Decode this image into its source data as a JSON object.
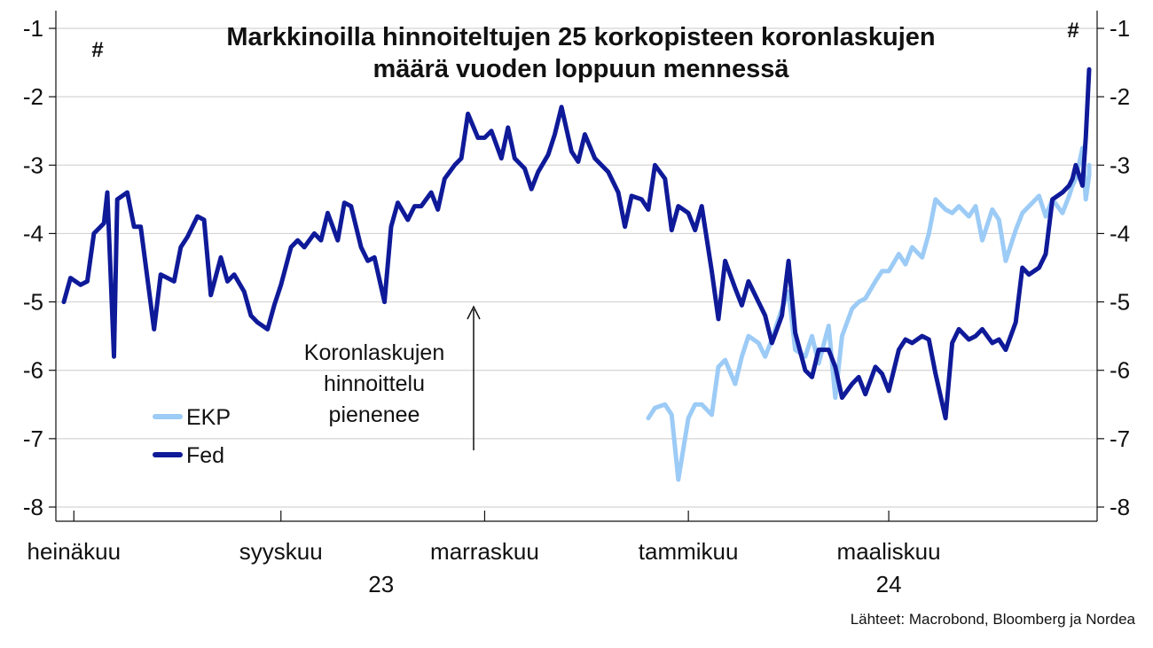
{
  "title_line1": "Markkinoilla hinnoiteltujen 25 korkopisteen koronlaskujen",
  "title_line2": "määrä vuoden loppuun mennessä",
  "unit_left": "#",
  "unit_right": "#",
  "source": "Lähteet: Macrobond, Bloomberg ja Nordea",
  "annotation_lines": [
    "Koronlaskujen",
    "hinnoittelu",
    "pienenee"
  ],
  "chart_data": {
    "type": "line",
    "ylim": [
      -8.25,
      -0.75
    ],
    "yticks": [
      -1,
      -2,
      -3,
      -4,
      -5,
      -6,
      -7,
      -8
    ],
    "ytick_labels": [
      "-1",
      "-2",
      "-3",
      "-4",
      "-5",
      "-6",
      "-7",
      "-8"
    ],
    "x_range": [
      "2023-06-28",
      "2024-04-30"
    ],
    "x_tick_positions": [
      "2023-07-01",
      "2023-09-01",
      "2023-11-01",
      "2024-01-01",
      "2024-03-01"
    ],
    "month_labels": [
      "heinäkuu",
      "syyskuu",
      "marraskuu",
      "tammikuu",
      "maaliskuu"
    ],
    "year_labels": [
      {
        "text": "23",
        "date": "2023-10-01"
      },
      {
        "text": "24",
        "date": "2024-03-01"
      }
    ],
    "grid": true,
    "legend_position": "bottom-left",
    "series": [
      {
        "name": "EKP",
        "color": "#9ccbf6",
        "points": [
          [
            "2023-12-20",
            -6.7
          ],
          [
            "2023-12-22",
            -6.55
          ],
          [
            "2023-12-25",
            -6.5
          ],
          [
            "2023-12-27",
            -6.65
          ],
          [
            "2023-12-29",
            -7.6
          ],
          [
            "2024-01-01",
            -6.7
          ],
          [
            "2024-01-03",
            -6.5
          ],
          [
            "2024-01-05",
            -6.5
          ],
          [
            "2024-01-08",
            -6.65
          ],
          [
            "2024-01-10",
            -5.95
          ],
          [
            "2024-01-12",
            -5.85
          ],
          [
            "2024-01-15",
            -6.2
          ],
          [
            "2024-01-17",
            -5.8
          ],
          [
            "2024-01-19",
            -5.5
          ],
          [
            "2024-01-22",
            -5.6
          ],
          [
            "2024-01-24",
            -5.8
          ],
          [
            "2024-01-26",
            -5.55
          ],
          [
            "2024-01-29",
            -5.1
          ],
          [
            "2024-01-31",
            -4.85
          ],
          [
            "2024-02-02",
            -5.7
          ],
          [
            "2024-02-05",
            -5.8
          ],
          [
            "2024-02-07",
            -5.5
          ],
          [
            "2024-02-09",
            -5.9
          ],
          [
            "2024-02-12",
            -5.35
          ],
          [
            "2024-02-14",
            -6.4
          ],
          [
            "2024-02-16",
            -5.5
          ],
          [
            "2024-02-19",
            -5.1
          ],
          [
            "2024-02-21",
            -5.0
          ],
          [
            "2024-02-23",
            -4.95
          ],
          [
            "2024-02-26",
            -4.7
          ],
          [
            "2024-02-28",
            -4.55
          ],
          [
            "2024-03-01",
            -4.55
          ],
          [
            "2024-03-04",
            -4.3
          ],
          [
            "2024-03-06",
            -4.45
          ],
          [
            "2024-03-08",
            -4.2
          ],
          [
            "2024-03-11",
            -4.35
          ],
          [
            "2024-03-13",
            -4.0
          ],
          [
            "2024-03-15",
            -3.5
          ],
          [
            "2024-03-18",
            -3.65
          ],
          [
            "2024-03-20",
            -3.7
          ],
          [
            "2024-03-22",
            -3.6
          ],
          [
            "2024-03-25",
            -3.75
          ],
          [
            "2024-03-27",
            -3.6
          ],
          [
            "2024-03-29",
            -4.1
          ],
          [
            "2024-04-01",
            -3.65
          ],
          [
            "2024-04-03",
            -3.8
          ],
          [
            "2024-04-05",
            -4.4
          ],
          [
            "2024-04-08",
            -3.95
          ],
          [
            "2024-04-10",
            -3.7
          ],
          [
            "2024-04-12",
            -3.6
          ],
          [
            "2024-04-15",
            -3.45
          ],
          [
            "2024-04-17",
            -3.75
          ],
          [
            "2024-04-19",
            -3.5
          ],
          [
            "2024-04-22",
            -3.7
          ],
          [
            "2024-04-24",
            -3.45
          ],
          [
            "2024-04-25",
            -3.3
          ],
          [
            "2024-04-26",
            -3.2
          ],
          [
            "2024-04-28",
            -2.75
          ],
          [
            "2024-04-29",
            -3.5
          ],
          [
            "2024-04-30",
            -3.15
          ],
          [
            "2024-04-30",
            -3.05
          ],
          [
            "2024-04-30",
            -3.0
          ],
          [
            "2024-04-30",
            -3.15
          ]
        ]
      },
      {
        "name": "Fed",
        "color": "#0f1a99",
        "points": [
          [
            "2023-06-28",
            -5.0
          ],
          [
            "2023-06-30",
            -4.65
          ],
          [
            "2023-07-03",
            -4.75
          ],
          [
            "2023-07-05",
            -4.7
          ],
          [
            "2023-07-07",
            -4.0
          ],
          [
            "2023-07-10",
            -3.85
          ],
          [
            "2023-07-11",
            -3.4
          ],
          [
            "2023-07-13",
            -5.8
          ],
          [
            "2023-07-14",
            -3.5
          ],
          [
            "2023-07-17",
            -3.4
          ],
          [
            "2023-07-19",
            -3.9
          ],
          [
            "2023-07-21",
            -3.9
          ],
          [
            "2023-07-25",
            -5.4
          ],
          [
            "2023-07-27",
            -4.6
          ],
          [
            "2023-07-31",
            -4.7
          ],
          [
            "2023-08-02",
            -4.2
          ],
          [
            "2023-08-04",
            -4.05
          ],
          [
            "2023-08-07",
            -3.75
          ],
          [
            "2023-08-09",
            -3.8
          ],
          [
            "2023-08-11",
            -4.9
          ],
          [
            "2023-08-14",
            -4.35
          ],
          [
            "2023-08-16",
            -4.7
          ],
          [
            "2023-08-18",
            -4.6
          ],
          [
            "2023-08-21",
            -4.85
          ],
          [
            "2023-08-23",
            -5.2
          ],
          [
            "2023-08-25",
            -5.3
          ],
          [
            "2023-08-28",
            -5.4
          ],
          [
            "2023-08-30",
            -5.05
          ],
          [
            "2023-09-01",
            -4.75
          ],
          [
            "2023-09-04",
            -4.2
          ],
          [
            "2023-09-06",
            -4.1
          ],
          [
            "2023-09-08",
            -4.2
          ],
          [
            "2023-09-11",
            -4.0
          ],
          [
            "2023-09-13",
            -4.1
          ],
          [
            "2023-09-15",
            -3.7
          ],
          [
            "2023-09-18",
            -4.1
          ],
          [
            "2023-09-20",
            -3.55
          ],
          [
            "2023-09-22",
            -3.6
          ],
          [
            "2023-09-25",
            -4.2
          ],
          [
            "2023-09-27",
            -4.4
          ],
          [
            "2023-09-29",
            -4.35
          ],
          [
            "2023-10-02",
            -5.0
          ],
          [
            "2023-10-04",
            -3.9
          ],
          [
            "2023-10-06",
            -3.55
          ],
          [
            "2023-10-09",
            -3.8
          ],
          [
            "2023-10-11",
            -3.6
          ],
          [
            "2023-10-13",
            -3.6
          ],
          [
            "2023-10-16",
            -3.4
          ],
          [
            "2023-10-18",
            -3.65
          ],
          [
            "2023-10-20",
            -3.2
          ],
          [
            "2023-10-23",
            -3.0
          ],
          [
            "2023-10-25",
            -2.9
          ],
          [
            "2023-10-27",
            -2.25
          ],
          [
            "2023-10-30",
            -2.6
          ],
          [
            "2023-11-01",
            -2.6
          ],
          [
            "2023-11-03",
            -2.5
          ],
          [
            "2023-11-06",
            -2.9
          ],
          [
            "2023-11-08",
            -2.45
          ],
          [
            "2023-11-10",
            -2.9
          ],
          [
            "2023-11-13",
            -3.05
          ],
          [
            "2023-11-15",
            -3.35
          ],
          [
            "2023-11-17",
            -3.1
          ],
          [
            "2023-11-20",
            -2.85
          ],
          [
            "2023-11-22",
            -2.55
          ],
          [
            "2023-11-24",
            -2.15
          ],
          [
            "2023-11-27",
            -2.8
          ],
          [
            "2023-11-29",
            -2.95
          ],
          [
            "2023-12-01",
            -2.55
          ],
          [
            "2023-12-04",
            -2.9
          ],
          [
            "2023-12-06",
            -3.0
          ],
          [
            "2023-12-08",
            -3.1
          ],
          [
            "2023-12-11",
            -3.4
          ],
          [
            "2023-12-13",
            -3.9
          ],
          [
            "2023-12-15",
            -3.45
          ],
          [
            "2023-12-18",
            -3.5
          ],
          [
            "2023-12-20",
            -3.65
          ],
          [
            "2023-12-22",
            -3.0
          ],
          [
            "2023-12-25",
            -3.2
          ],
          [
            "2023-12-27",
            -3.95
          ],
          [
            "2023-12-29",
            -3.6
          ],
          [
            "2024-01-01",
            -3.7
          ],
          [
            "2024-01-03",
            -3.95
          ],
          [
            "2024-01-05",
            -3.6
          ],
          [
            "2024-01-08",
            -4.55
          ],
          [
            "2024-01-10",
            -5.25
          ],
          [
            "2024-01-12",
            -4.4
          ],
          [
            "2024-01-15",
            -4.8
          ],
          [
            "2024-01-17",
            -5.05
          ],
          [
            "2024-01-19",
            -4.7
          ],
          [
            "2024-01-22",
            -5.0
          ],
          [
            "2024-01-24",
            -5.2
          ],
          [
            "2024-01-26",
            -5.6
          ],
          [
            "2024-01-29",
            -5.2
          ],
          [
            "2024-01-31",
            -4.4
          ],
          [
            "2024-02-02",
            -5.45
          ],
          [
            "2024-02-05",
            -6.0
          ],
          [
            "2024-02-07",
            -6.1
          ],
          [
            "2024-02-09",
            -5.7
          ],
          [
            "2024-02-12",
            -5.7
          ],
          [
            "2024-02-14",
            -5.95
          ],
          [
            "2024-02-16",
            -6.4
          ],
          [
            "2024-02-19",
            -6.2
          ],
          [
            "2024-02-21",
            -6.1
          ],
          [
            "2024-02-23",
            -6.35
          ],
          [
            "2024-02-26",
            -5.95
          ],
          [
            "2024-02-28",
            -6.05
          ],
          [
            "2024-03-01",
            -6.3
          ],
          [
            "2024-03-04",
            -5.7
          ],
          [
            "2024-03-06",
            -5.55
          ],
          [
            "2024-03-08",
            -5.6
          ],
          [
            "2024-03-11",
            -5.5
          ],
          [
            "2024-03-13",
            -5.55
          ],
          [
            "2024-03-15",
            -6.05
          ],
          [
            "2024-03-18",
            -6.7
          ],
          [
            "2024-03-20",
            -5.6
          ],
          [
            "2024-03-22",
            -5.4
          ],
          [
            "2024-03-25",
            -5.55
          ],
          [
            "2024-03-27",
            -5.5
          ],
          [
            "2024-03-29",
            -5.4
          ],
          [
            "2024-04-01",
            -5.6
          ],
          [
            "2024-04-03",
            -5.55
          ],
          [
            "2024-04-05",
            -5.7
          ],
          [
            "2024-04-08",
            -5.3
          ],
          [
            "2024-04-10",
            -4.5
          ],
          [
            "2024-04-12",
            -4.6
          ],
          [
            "2024-04-15",
            -4.5
          ],
          [
            "2024-04-17",
            -4.3
          ],
          [
            "2024-04-19",
            -3.5
          ],
          [
            "2024-04-22",
            -3.4
          ],
          [
            "2024-04-24",
            -3.3
          ],
          [
            "2024-04-25",
            -3.2
          ],
          [
            "2024-04-26",
            -3.0
          ],
          [
            "2024-04-28",
            -3.3
          ],
          [
            "2024-04-29",
            -2.6
          ],
          [
            "2024-04-30",
            -1.6
          ],
          [
            "2024-04-30",
            -1.6
          ]
        ]
      }
    ]
  }
}
